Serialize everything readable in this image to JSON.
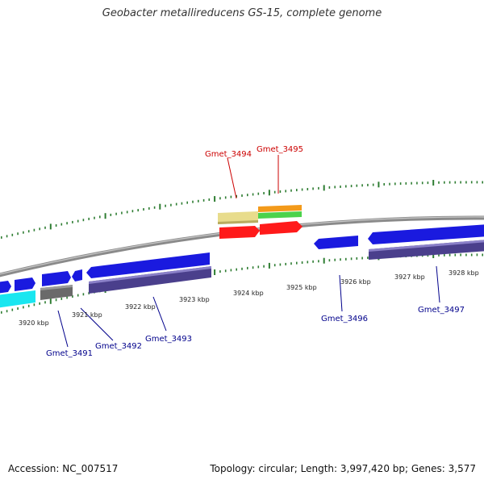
{
  "title": "Geobacter metallireducens GS-15, complete genome",
  "footer": {
    "accession": "Accession: NC_007517",
    "summary": "Topology: circular; Length: 3,997,420 bp; Genes: 3,577"
  },
  "colors": {
    "backbone": "#8a8a8a",
    "ruler_tick": "#2e7d32",
    "blue_gene": "#1a1adf",
    "purple_gene": "#4a3f8c",
    "cyan_gene": "#19e6f0",
    "gray_gene": "#6a6a6a",
    "red_gene": "#ff1a1a",
    "khaki_gene": "#e8dc8c",
    "orange_gene": "#f39a1a",
    "green_gene": "#4bd24b",
    "label_red": "#cc0000",
    "label_blue": "#00008b"
  },
  "kbp_labels": [
    {
      "id": "t3920",
      "text": "3920 kbp"
    },
    {
      "id": "t3921",
      "text": "3921 kbp"
    },
    {
      "id": "t3922",
      "text": "3922 kbp"
    },
    {
      "id": "t3923",
      "text": "3923 kbp"
    },
    {
      "id": "t3924",
      "text": "3924 kbp"
    },
    {
      "id": "t3925",
      "text": "3925 kbp"
    },
    {
      "id": "t3926",
      "text": "3926 kbp"
    },
    {
      "id": "t3927",
      "text": "3927 kbp"
    },
    {
      "id": "t3928",
      "text": "3928 kbp"
    }
  ],
  "gene_labels": [
    {
      "id": "g3494",
      "text": "Gmet_3494",
      "color": "red"
    },
    {
      "id": "g3495",
      "text": "Gmet_3495",
      "color": "red"
    },
    {
      "id": "g3491",
      "text": "Gmet_3491",
      "color": "blue"
    },
    {
      "id": "g3492",
      "text": "Gmet_3492",
      "color": "blue"
    },
    {
      "id": "g3493",
      "text": "Gmet_3493",
      "color": "blue"
    },
    {
      "id": "g3496",
      "text": "Gmet_3496",
      "color": "blue"
    },
    {
      "id": "g3497",
      "text": "Gmet_3497",
      "color": "blue"
    }
  ]
}
